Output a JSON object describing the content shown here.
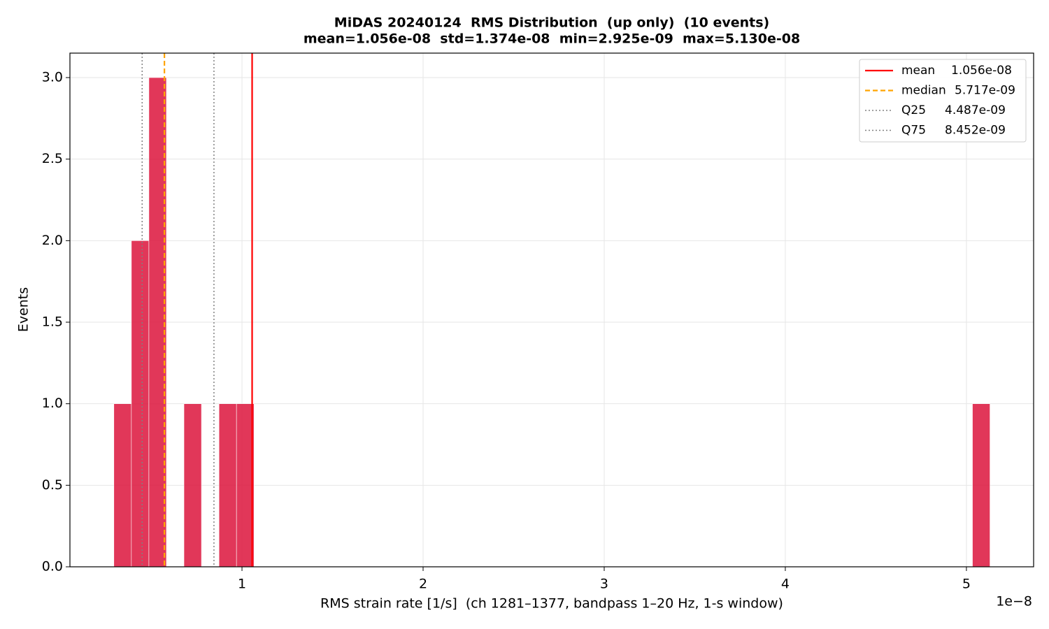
{
  "chart_data": {
    "type": "histogram",
    "title": "MiDAS 20240124  RMS Distribution  (up only)  (10 events)",
    "subtitle": "mean=1.056e-08  std=1.374e-08  min=2.925e-09  max=5.130e-08",
    "x_label": "RMS strain rate [1/s]  (ch 1281–1377, bandpass 1–20 Hz, 1-s window)",
    "y_label": "Events",
    "x_offset_label": "1e−8",
    "bins": [
      2.925e-09,
      3.8925e-09,
      4.86e-09,
      5.8275e-09,
      6.795e-09,
      7.7625e-09,
      8.73e-09,
      9.6975e-09,
      1.0665e-08,
      1.16325e-08,
      1.26e-08,
      1.35675e-08,
      1.4535e-08,
      1.55025e-08,
      1.647e-08,
      1.74375e-08,
      1.8405e-08,
      1.93725e-08,
      2.034e-08,
      2.13075e-08,
      2.2275e-08,
      2.32425e-08,
      2.421e-08,
      2.51775e-08,
      2.6145e-08,
      2.71125e-08,
      2.808e-08,
      2.90475e-08,
      3.0015e-08,
      3.09825e-08,
      3.195e-08,
      3.29175e-08,
      3.3885e-08,
      3.48525e-08,
      3.582e-08,
      3.67875e-08,
      3.7755e-08,
      3.87225e-08,
      3.969e-08,
      4.06575e-08,
      4.1625e-08,
      4.25925e-08,
      4.356e-08,
      4.45275e-08,
      4.5495e-08,
      4.64625e-08,
      4.743e-08,
      4.83975e-08,
      4.9365e-08,
      5.03325e-08,
      5.13e-08
    ],
    "counts": [
      1,
      2,
      3,
      0,
      1,
      0,
      1,
      1,
      0,
      0,
      0,
      0,
      0,
      0,
      0,
      0,
      0,
      0,
      0,
      0,
      0,
      0,
      0,
      0,
      0,
      0,
      0,
      0,
      0,
      0,
      0,
      0,
      0,
      0,
      0,
      0,
      0,
      0,
      0,
      0,
      0,
      0,
      0,
      0,
      0,
      0,
      0,
      0,
      0,
      1
    ],
    "color": "#dc143c",
    "reference_lines": [
      {
        "name": "mean",
        "value": 1.056e-08,
        "value_label": "1.056e-08",
        "color": "#ff0000",
        "style": "solid"
      },
      {
        "name": "median",
        "value": 5.717e-09,
        "value_label": "5.717e-09",
        "color": "#ffa500",
        "style": "dashed"
      },
      {
        "name": "Q25",
        "value": 4.487e-09,
        "value_label": "4.487e-09",
        "color": "#808080",
        "style": "dotted"
      },
      {
        "name": "Q75",
        "value": 8.452e-09,
        "value_label": "8.452e-09",
        "color": "#808080",
        "style": "dotted"
      }
    ],
    "xlim": [
      5e-10,
      5.371e-08
    ],
    "xticks": [
      {
        "value": 1e-08,
        "label": "1"
      },
      {
        "value": 2e-08,
        "label": "2"
      },
      {
        "value": 3e-08,
        "label": "3"
      },
      {
        "value": 4e-08,
        "label": "4"
      },
      {
        "value": 5e-08,
        "label": "5"
      }
    ],
    "ylim": [
      0,
      3.15
    ],
    "yticks": [
      {
        "value": 0,
        "label": "0.0"
      },
      {
        "value": 0.5,
        "label": "0.5"
      },
      {
        "value": 1,
        "label": "1.0"
      },
      {
        "value": 1.5,
        "label": "1.5"
      },
      {
        "value": 2,
        "label": "2.0"
      },
      {
        "value": 2.5,
        "label": "2.5"
      },
      {
        "value": 3,
        "label": "3.0"
      }
    ],
    "grid": true,
    "legend_position": "upper-right"
  }
}
